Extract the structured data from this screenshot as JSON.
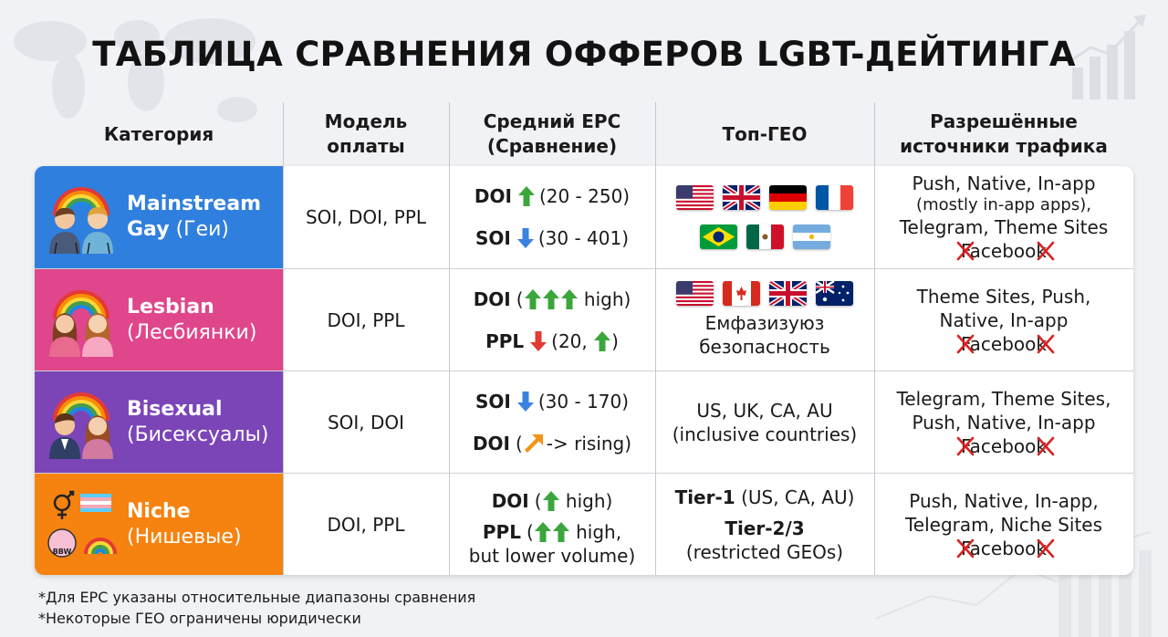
{
  "title": "ТАБЛИЦА СРАВНЕНИЯ ОФФЕРОВ LGBT-ДЕЙТИНГА",
  "headers": {
    "category": "Категория",
    "model_1": "Модель",
    "model_2": "оплаты",
    "epc_1": "Средний EPC",
    "epc_2": "(Сравнение)",
    "geo": "Топ-ГЕО",
    "sources_1": "Разрешённые",
    "sources_2": "источники трафика"
  },
  "rows": [
    {
      "category_name": "Mainstream",
      "category_sub": "Gay (Геи)",
      "color": "#2f7fde",
      "icon": "two-men-rainbow-icon",
      "model": "SOI, DOI, PPL",
      "epc": [
        {
          "label": "DOI",
          "arrow": "up-green",
          "text": "(20 - 250)"
        },
        {
          "label": "SOI",
          "arrow": "down-blue",
          "text": "(30 - 401)"
        }
      ],
      "geo_flags": [
        "us",
        "uk",
        "de",
        "fr",
        "br",
        "mx",
        "ar"
      ],
      "sources": [
        "Push, Native, In-app",
        "(mostly in-app apps),",
        "Telegram, Theme Sites"
      ],
      "blocked": "Facebook"
    },
    {
      "category_name": "Lesbian",
      "category_sub": "(Лесбиянки)",
      "color": "#e0468b",
      "icon": "two-women-rainbow-icon",
      "model": "DOI, PPL",
      "epc": [
        {
          "label": "DOI",
          "text_before": "(",
          "arrow": "triple-up-green",
          "text": " high)"
        },
        {
          "label": "PPL",
          "arrow": "down-red",
          "text_before": "",
          "text": "(20, ",
          "arrow2": "up-green",
          "text_after": ")"
        }
      ],
      "geo_flags": [
        "us",
        "ca",
        "uk",
        "au"
      ],
      "geo_text_1": "Емфазизуюз",
      "geo_text_2": "безопасность",
      "sources": [
        "Theme Sites, Push,",
        "Native, In-app"
      ],
      "blocked": "Facebook"
    },
    {
      "category_name": "Bisexual",
      "category_sub": "(Бисексуалы)",
      "color": "#7b45b8",
      "icon": "man-woman-rainbow-icon",
      "model": "SOI, DOI",
      "epc": [
        {
          "label": "SOI",
          "arrow": "down-blue",
          "text": "(30 - 170)"
        },
        {
          "label": "DOI",
          "text_before": "(",
          "arrow": "diag-orange",
          "text": "-> rising)"
        }
      ],
      "geo_text_1": "US, UK, CA, AU",
      "geo_text_2": "(inclusive countries)",
      "sources": [
        "Telegram, Theme Sites,",
        "Push, Native, In-app"
      ],
      "blocked": "Facebook"
    },
    {
      "category_name": "Niche",
      "category_sub": "(Нишевые)",
      "color": "#f6820f",
      "icon": "niche-symbols-icon",
      "badge": "BBW",
      "model": "DOI, PPL",
      "epc": [
        {
          "label": "DOI",
          "text_before": "(",
          "arrow": "up-green",
          "text": " high)"
        },
        {
          "label": "PPL",
          "text_before": "(",
          "arrow": "double-up-green",
          "text": " high,"
        },
        {
          "label": "",
          "text": "but lower volume)"
        }
      ],
      "geo_bold_1": "Tier-1",
      "geo_text_1": " (US, CA, AU)",
      "geo_bold_2": "Tier-2/3",
      "geo_text_2": "(restricted GEOs)",
      "sources": [
        "Push, Native, In-app,",
        "Telegram, Niche Sites"
      ],
      "blocked": "Facebook"
    }
  ],
  "footnotes": [
    "*Для EPC указаны относительные диапазоны сравнения",
    "*Некоторые ГЕО ограничены юридически"
  ]
}
